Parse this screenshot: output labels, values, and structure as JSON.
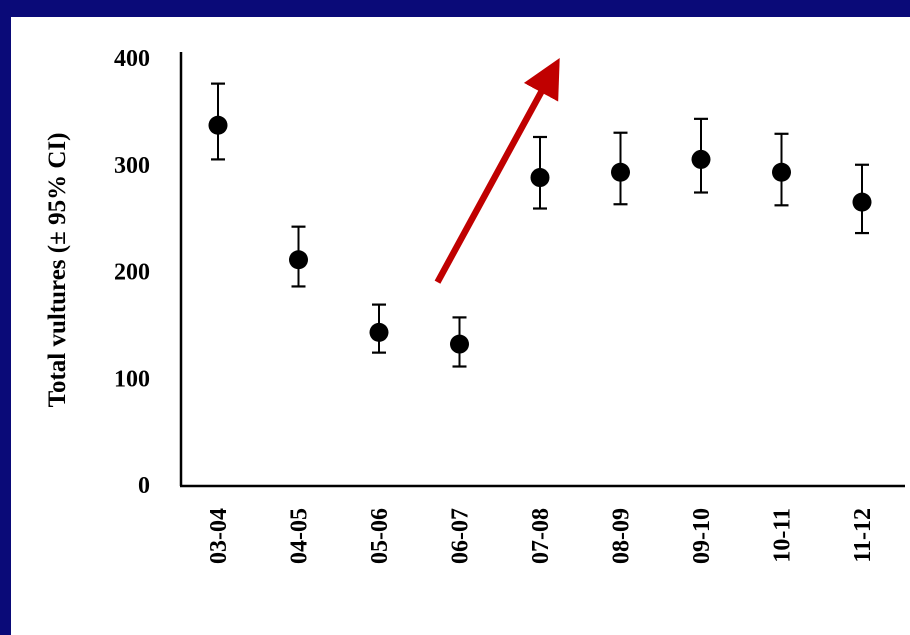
{
  "chart_data": {
    "type": "scatter",
    "title": "",
    "xlabel": "",
    "ylabel": "Total vultures (± 95% CI)",
    "categories": [
      "03-04",
      "04-05",
      "05-06",
      "06-07",
      "07-08",
      "08-09",
      "09-10",
      "10-11",
      "11-12"
    ],
    "series": [
      {
        "values": [
          337,
          211,
          143,
          132,
          288,
          293,
          305,
          293,
          265
        ],
        "ci_low": [
          305,
          186,
          124,
          111,
          259,
          263,
          274,
          262,
          236
        ],
        "ci_high": [
          376,
          242,
          169,
          157,
          326,
          330,
          343,
          329,
          300
        ]
      }
    ],
    "ylim": [
      0,
      400
    ],
    "yticks": [
      0,
      100,
      200,
      300,
      400
    ],
    "grid": false,
    "legend": "none",
    "annotation": {
      "type": "arrow",
      "color": "#c00000",
      "from": {
        "x": "06-07",
        "y": 190
      },
      "to": {
        "x": "07-08",
        "y": 385
      }
    },
    "colors": {
      "background": "#0a0a78",
      "plot_background": "#ffffff",
      "marker": "#000000",
      "arrow": "#c00000"
    }
  }
}
